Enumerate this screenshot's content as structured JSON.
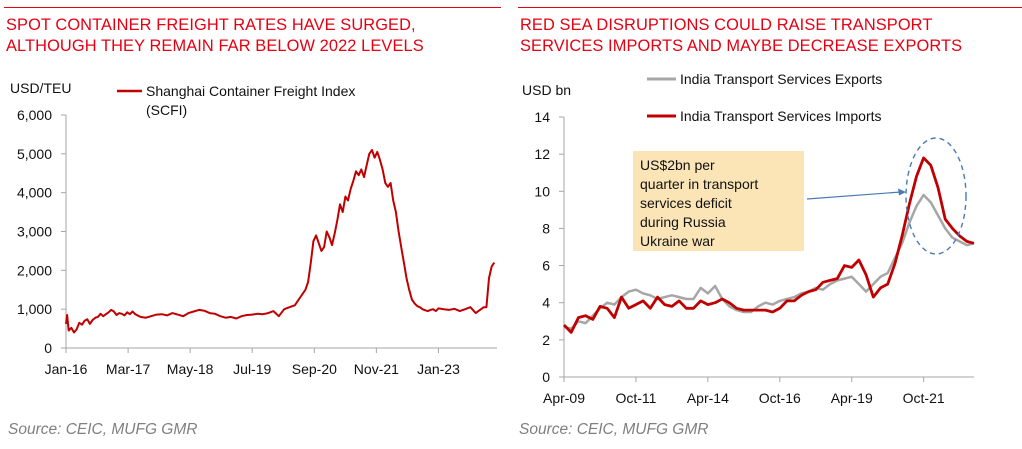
{
  "charts": [
    {
      "title_line1": "SPOT CONTAINER FREIGHT RATES HAVE SURGED,",
      "title_line2": "ALTHOUGH THEY REMAIN FAR BELOW 2022 LEVELS",
      "source": "Source: CEIC, MUFG GMR",
      "unit_label": "USD/TEU"
    },
    {
      "title_line1": "RED SEA DISRUPTIONS COULD RAISE TRANSPORT",
      "title_line2": "SERVICES IMPORTS AND MAYBE DECREASE EXPORTS",
      "source": "Source: CEIC, MUFG GMR",
      "unit_label": "USD bn",
      "annotation": [
        "US$2bn per",
        "quarter in transport",
        "services deficit",
        "during Russia",
        "Ukraine war"
      ]
    }
  ],
  "chart_data": [
    {
      "type": "line",
      "title": "SPOT CONTAINER FREIGHT RATES HAVE SURGED, ALTHOUGH THEY REMAIN FAR BELOW 2022 LEVELS",
      "ylabel": "USD/TEU",
      "ylim": [
        0,
        6000
      ],
      "yticks": [
        0,
        1000,
        2000,
        3000,
        4000,
        5000,
        6000
      ],
      "ytick_labels": [
        "0",
        "1,000",
        "2,000",
        "3,000",
        "4,000",
        "5,000",
        "6,000"
      ],
      "xlim": [
        2016.0,
        2024.1
      ],
      "xtick_labels": [
        "Jan-16",
        "Mar-17",
        "May-18",
        "Jul-19",
        "Sep-20",
        "Nov-21",
        "Jan-23"
      ],
      "xtick_positions": [
        2016.0,
        2017.167,
        2018.333,
        2019.5,
        2020.667,
        2021.833,
        2023.0
      ],
      "grid": false,
      "legend_position": "top-left",
      "colors": {
        "line": "#c00000",
        "axis": "#a6a6a6",
        "title": "#e60012"
      },
      "series": [
        {
          "name": "Shanghai Container Freight Index (SCFI)",
          "x": [
            2016.0,
            2016.02,
            2016.05,
            2016.1,
            2016.15,
            2016.2,
            2016.25,
            2016.3,
            2016.35,
            2016.4,
            2016.45,
            2016.5,
            2016.55,
            2016.6,
            2016.65,
            2016.7,
            2016.75,
            2016.8,
            2016.85,
            2016.9,
            2016.95,
            2017.0,
            2017.05,
            2017.1,
            2017.15,
            2017.2,
            2017.25,
            2017.3,
            2017.4,
            2017.5,
            2017.6,
            2017.7,
            2017.8,
            2017.9,
            2018.0,
            2018.1,
            2018.2,
            2018.3,
            2018.4,
            2018.5,
            2018.6,
            2018.7,
            2018.8,
            2018.9,
            2019.0,
            2019.1,
            2019.2,
            2019.3,
            2019.4,
            2019.5,
            2019.6,
            2019.7,
            2019.8,
            2019.9,
            2020.0,
            2020.1,
            2020.2,
            2020.3,
            2020.4,
            2020.5,
            2020.55,
            2020.6,
            2020.65,
            2020.7,
            2020.75,
            2020.8,
            2020.85,
            2020.9,
            2020.95,
            2021.0,
            2021.05,
            2021.1,
            2021.15,
            2021.2,
            2021.25,
            2021.3,
            2021.35,
            2021.4,
            2021.45,
            2021.5,
            2021.55,
            2021.6,
            2021.65,
            2021.7,
            2021.75,
            2021.8,
            2021.85,
            2021.9,
            2021.95,
            2022.0,
            2022.05,
            2022.1,
            2022.15,
            2022.2,
            2022.25,
            2022.3,
            2022.35,
            2022.4,
            2022.45,
            2022.5,
            2022.55,
            2022.6,
            2022.65,
            2022.7,
            2022.75,
            2022.8,
            2022.85,
            2022.9,
            2022.95,
            2023.0,
            2023.1,
            2023.2,
            2023.3,
            2023.4,
            2023.5,
            2023.6,
            2023.7,
            2023.8,
            2023.85,
            2023.9,
            2023.95,
            2024.0,
            2024.05
          ],
          "y": [
            620,
            850,
            450,
            520,
            400,
            480,
            650,
            600,
            700,
            740,
            620,
            720,
            780,
            800,
            880,
            820,
            870,
            920,
            980,
            940,
            850,
            900,
            880,
            840,
            920,
            870,
            940,
            870,
            800,
            780,
            820,
            860,
            870,
            840,
            900,
            860,
            820,
            900,
            940,
            980,
            960,
            900,
            880,
            820,
            780,
            800,
            760,
            820,
            850,
            860,
            880,
            870,
            900,
            950,
            820,
            1000,
            1050,
            1100,
            1300,
            1500,
            1700,
            2200,
            2750,
            2900,
            2700,
            2500,
            2600,
            3000,
            2850,
            2650,
            2950,
            3300,
            3700,
            3500,
            3900,
            3800,
            4100,
            4300,
            4550,
            4450,
            4600,
            4400,
            4700,
            5000,
            5100,
            4900,
            5050,
            4850,
            4600,
            4250,
            4150,
            4250,
            3800,
            3500,
            3000,
            2600,
            2200,
            1800,
            1500,
            1250,
            1150,
            1080,
            1050,
            1000,
            970,
            950,
            980,
            1000,
            950,
            1020,
            1000,
            980,
            1010,
            950,
            1000,
            1050,
            900,
            1000,
            1050,
            1050,
            1800,
            2100,
            2200
          ]
        }
      ]
    },
    {
      "type": "line",
      "title": "RED SEA DISRUPTIONS COULD RAISE TRANSPORT SERVICES IMPORTS AND MAYBE DECREASE EXPORTS",
      "ylabel": "USD bn",
      "ylim": [
        0,
        14
      ],
      "yticks": [
        0,
        2,
        4,
        6,
        8,
        10,
        12,
        14
      ],
      "xlim": [
        2009.25,
        2023.5
      ],
      "xtick_labels": [
        "Apr-09",
        "Oct-11",
        "Apr-14",
        "Oct-16",
        "Apr-19",
        "Oct-21"
      ],
      "xtick_positions": [
        2009.25,
        2011.75,
        2014.25,
        2016.75,
        2019.25,
        2021.75
      ],
      "grid": false,
      "legend_position": "top",
      "colors": {
        "imports": "#c00000",
        "exports": "#a6a6a6",
        "axis": "#a6a6a6",
        "annotation_fill": "#fbe5b6",
        "annotation_arrow": "#4a7ab5",
        "highlight_ellipse": "#4a7ab5"
      },
      "x": [
        2009.25,
        2009.5,
        2009.75,
        2010.0,
        2010.25,
        2010.5,
        2010.75,
        2011.0,
        2011.25,
        2011.5,
        2011.75,
        2012.0,
        2012.25,
        2012.5,
        2012.75,
        2013.0,
        2013.25,
        2013.5,
        2013.75,
        2014.0,
        2014.25,
        2014.5,
        2014.75,
        2015.0,
        2015.25,
        2015.5,
        2015.75,
        2016.0,
        2016.25,
        2016.5,
        2016.75,
        2017.0,
        2017.25,
        2017.5,
        2017.75,
        2018.0,
        2018.25,
        2018.5,
        2018.75,
        2019.0,
        2019.25,
        2019.5,
        2019.75,
        2020.0,
        2020.25,
        2020.5,
        2020.75,
        2021.0,
        2021.25,
        2021.5,
        2021.75,
        2022.0,
        2022.25,
        2022.5,
        2022.75,
        2023.0,
        2023.25,
        2023.5
      ],
      "series": [
        {
          "name": "India Transport Services Exports",
          "values": [
            2.7,
            2.6,
            3.0,
            2.9,
            3.3,
            3.7,
            4.0,
            3.9,
            4.3,
            4.6,
            4.7,
            4.5,
            4.4,
            4.2,
            4.3,
            4.4,
            4.3,
            4.2,
            4.2,
            4.8,
            4.5,
            4.9,
            4.2,
            3.8,
            3.6,
            3.5,
            3.5,
            3.8,
            4.0,
            3.9,
            4.1,
            4.2,
            4.3,
            4.5,
            4.6,
            4.8,
            4.7,
            5.0,
            5.2,
            5.3,
            5.4,
            5.0,
            4.6,
            5.0,
            5.4,
            5.6,
            6.4,
            7.2,
            8.3,
            9.2,
            9.8,
            9.4,
            8.7,
            8.0,
            7.5,
            7.3,
            7.1,
            7.2
          ],
          "legend_label": "India Transport Services Exports"
        },
        {
          "name": "India Transport Services Imports",
          "values": [
            2.8,
            2.4,
            3.2,
            3.3,
            3.1,
            3.8,
            3.7,
            3.2,
            4.3,
            3.7,
            3.9,
            4.1,
            3.7,
            4.3,
            3.9,
            3.8,
            4.1,
            3.7,
            3.7,
            4.1,
            3.9,
            4.0,
            4.2,
            4.0,
            3.7,
            3.6,
            3.6,
            3.6,
            3.6,
            3.5,
            3.7,
            4.1,
            4.1,
            4.4,
            4.6,
            4.7,
            5.1,
            5.2,
            5.3,
            6.0,
            5.9,
            6.3,
            5.5,
            4.3,
            4.8,
            5.0,
            6.1,
            7.6,
            9.3,
            10.8,
            11.8,
            11.4,
            10.2,
            8.5,
            8.0,
            7.6,
            7.3,
            7.2
          ],
          "legend_label": "India Transport Services Imports"
        }
      ]
    }
  ]
}
